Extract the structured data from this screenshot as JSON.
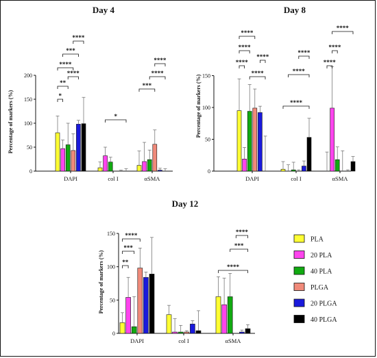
{
  "colors": {
    "PLA": "#ffff33",
    "20 PLA": "#ff44ee",
    "40 PLA": "#11aa11",
    "PLGA": "#f08a7a",
    "20 PLGA": "#1a1adc",
    "40 PLGA": "#000000"
  },
  "legend": {
    "items": [
      "PLA",
      "20 PLA",
      "40 PLA",
      "PLGA",
      "20 PLGA",
      "40 PLGA"
    ]
  },
  "chart_data": [
    {
      "type": "bar",
      "title": "Day 4",
      "ylabel": "Percentage of markers (%)",
      "ylim": [
        0,
        200
      ],
      "yticks": [
        "0",
        "50",
        "100",
        "150",
        "200"
      ],
      "categories": [
        "DAPI",
        "col I",
        "αSMA"
      ],
      "series": [
        {
          "name": "PLA",
          "values": [
            80,
            7,
            12
          ],
          "errors": [
            35,
            12,
            30
          ]
        },
        {
          "name": "20 PLA",
          "values": [
            47,
            32,
            20
          ],
          "errors": [
            18,
            18,
            40
          ]
        },
        {
          "name": "40 PLA",
          "values": [
            55,
            19,
            24
          ],
          "errors": [
            45,
            10,
            20
          ]
        },
        {
          "name": "PLGA",
          "values": [
            43,
            0,
            56
          ],
          "errors": [
            35,
            0,
            30
          ]
        },
        {
          "name": "20 PLGA",
          "values": [
            98,
            0,
            2
          ],
          "errors": [
            8,
            2,
            4
          ]
        },
        {
          "name": "40 PLGA",
          "values": [
            99,
            0,
            0
          ],
          "errors": [
            55,
            5,
            5
          ]
        }
      ],
      "significance": [
        "*",
        "**",
        "****",
        "***",
        "****",
        "****",
        "*",
        "***",
        "****",
        "****"
      ]
    },
    {
      "type": "bar",
      "title": "Day 8",
      "ylabel": "Percentage of markers (%)",
      "ylim": [
        0,
        200
      ],
      "yticks": [
        "0",
        "50",
        "100",
        "150"
      ],
      "categories": [
        "DAPI",
        "col I",
        "αSMA"
      ],
      "series": [
        {
          "name": "PLA",
          "values": [
            95,
            3,
            0
          ],
          "errors": [
            50,
            12,
            30
          ]
        },
        {
          "name": "20 PLA",
          "values": [
            19,
            0,
            99
          ],
          "errors": [
            18,
            10,
            65
          ]
        },
        {
          "name": "40 PLA",
          "values": [
            94,
            2,
            18
          ],
          "errors": [
            42,
            12,
            20
          ]
        },
        {
          "name": "PLGA",
          "values": [
            99,
            0,
            0
          ],
          "errors": [
            30,
            2,
            32
          ]
        },
        {
          "name": "20 PLGA",
          "values": [
            92,
            8,
            0
          ],
          "errors": [
            10,
            8,
            2
          ]
        },
        {
          "name": "40 PLGA",
          "values": [
            0,
            53,
            15
          ],
          "errors": [
            55,
            30,
            8
          ]
        }
      ],
      "significance": [
        "****",
        "****",
        "****",
        "****",
        "****",
        "****",
        "****",
        "****",
        "****",
        "****",
        "****"
      ]
    },
    {
      "type": "bar",
      "title": "Day 12",
      "ylabel": "Percentage of markers (%)",
      "ylim": [
        0,
        150
      ],
      "yticks": [
        "0",
        "50",
        "100",
        "150"
      ],
      "categories": [
        "DAPI",
        "col I",
        "αSMA"
      ],
      "series": [
        {
          "name": "PLA",
          "values": [
            16,
            28,
            55
          ],
          "errors": [
            15,
            14,
            30
          ]
        },
        {
          "name": "20 PLA",
          "values": [
            54,
            2,
            43
          ],
          "errors": [
            30,
            20,
            40
          ]
        },
        {
          "name": "40 PLA",
          "values": [
            10,
            2,
            55
          ],
          "errors": [
            45,
            10,
            35
          ]
        },
        {
          "name": "PLGA",
          "values": [
            98,
            2,
            0
          ],
          "errors": [
            30,
            2,
            0
          ]
        },
        {
          "name": "20 PLGA",
          "values": [
            84,
            14,
            2
          ],
          "errors": [
            8,
            5,
            3
          ]
        },
        {
          "name": "40 PLGA",
          "values": [
            89,
            4,
            7
          ],
          "errors": [
            55,
            30,
            6
          ]
        }
      ],
      "significance": [
        "**",
        "***",
        "****",
        "****",
        "***",
        "****"
      ]
    }
  ]
}
